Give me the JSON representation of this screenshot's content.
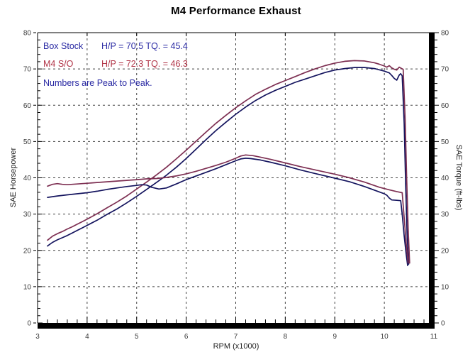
{
  "title": "M4 Performance Exhaust",
  "legend": {
    "rows": [
      {
        "name": "Box Stock",
        "values": "H/P = 70.5 TQ. = 45.4",
        "color": "#2929a3"
      },
      {
        "name": "M4 S/O",
        "values": "H/P = 72.3 TQ. = 46.3",
        "color": "#b03346"
      }
    ],
    "note": "Numbers are Peak to Peak.",
    "note_color": "#2929a3"
  },
  "axes": {
    "x": {
      "label": "RPM (x1000)",
      "min": 3,
      "max": 11,
      "major_step": 1,
      "minor_step": 0.2
    },
    "y_left": {
      "label": "SAE Horsepower",
      "min": 0,
      "max": 80,
      "major_step": 10,
      "minor_step": 2
    },
    "y_right": {
      "label": "SAE Torque (ft-lbs)",
      "min": 0,
      "max": 80,
      "major_step": 10,
      "minor_step": 2
    }
  },
  "colors": {
    "stock_curve": "#14145e",
    "m4_curve": "#7d2f52",
    "grid": "#404040",
    "frame": "#000000",
    "tick_label": "#3c3c3c"
  },
  "chart_data": {
    "type": "line",
    "title": "M4 Performance Exhaust",
    "xlabel": "RPM (x1000)",
    "ylabel_left": "SAE Horsepower",
    "ylabel_right": "SAE Torque (ft-lbs)",
    "xlim": [
      3,
      11
    ],
    "ylim": [
      0,
      80
    ],
    "grid": "dashed",
    "peaks": {
      "box_stock": {
        "hp": 70.5,
        "tq": 45.4
      },
      "m4_so": {
        "hp": 72.3,
        "tq": 46.3
      }
    },
    "series": [
      {
        "name": "Box Stock Horsepower",
        "color_key": "stock_curve",
        "points": [
          [
            3.2,
            21.2
          ],
          [
            3.3,
            22.2
          ],
          [
            3.4,
            22.9
          ],
          [
            3.5,
            23.5
          ],
          [
            3.6,
            24.1
          ],
          [
            3.7,
            24.8
          ],
          [
            3.8,
            25.5
          ],
          [
            3.9,
            26.2
          ],
          [
            4.0,
            26.9
          ],
          [
            4.2,
            28.3
          ],
          [
            4.4,
            29.9
          ],
          [
            4.6,
            31.4
          ],
          [
            4.8,
            33.1
          ],
          [
            5.0,
            34.9
          ],
          [
            5.2,
            36.8
          ],
          [
            5.4,
            38.7
          ],
          [
            5.6,
            40.7
          ],
          [
            5.8,
            42.9
          ],
          [
            6.0,
            45.3
          ],
          [
            6.2,
            47.9
          ],
          [
            6.4,
            50.5
          ],
          [
            6.6,
            53.0
          ],
          [
            6.8,
            55.3
          ],
          [
            7.0,
            57.5
          ],
          [
            7.2,
            59.5
          ],
          [
            7.4,
            61.3
          ],
          [
            7.6,
            62.8
          ],
          [
            7.8,
            64.1
          ],
          [
            8.0,
            65.2
          ],
          [
            8.2,
            66.3
          ],
          [
            8.4,
            67.2
          ],
          [
            8.6,
            68.1
          ],
          [
            8.8,
            69.0
          ],
          [
            9.0,
            69.7
          ],
          [
            9.2,
            70.1
          ],
          [
            9.4,
            70.4
          ],
          [
            9.6,
            70.4
          ],
          [
            9.8,
            70.1
          ],
          [
            10.0,
            69.4
          ],
          [
            10.1,
            68.9
          ],
          [
            10.15,
            68.2
          ],
          [
            10.2,
            67.4
          ],
          [
            10.25,
            66.9
          ],
          [
            10.3,
            68.3
          ],
          [
            10.33,
            68.7
          ],
          [
            10.36,
            68.1
          ],
          [
            10.4,
            55.0
          ],
          [
            10.43,
            38.0
          ],
          [
            10.46,
            24.0
          ],
          [
            10.49,
            16.2
          ]
        ]
      },
      {
        "name": "M4 S/O Horsepower",
        "color_key": "m4_curve",
        "points": [
          [
            3.2,
            22.8
          ],
          [
            3.3,
            23.9
          ],
          [
            3.4,
            24.6
          ],
          [
            3.5,
            25.2
          ],
          [
            3.6,
            25.9
          ],
          [
            3.7,
            26.5
          ],
          [
            3.8,
            27.2
          ],
          [
            3.9,
            27.9
          ],
          [
            4.0,
            28.6
          ],
          [
            4.2,
            30.1
          ],
          [
            4.4,
            31.7
          ],
          [
            4.6,
            33.3
          ],
          [
            4.8,
            35.0
          ],
          [
            5.0,
            36.9
          ],
          [
            5.2,
            38.8
          ],
          [
            5.4,
            40.8
          ],
          [
            5.6,
            42.9
          ],
          [
            5.8,
            45.2
          ],
          [
            6.0,
            47.6
          ],
          [
            6.2,
            50.1
          ],
          [
            6.4,
            52.6
          ],
          [
            6.6,
            55.0
          ],
          [
            6.8,
            57.2
          ],
          [
            7.0,
            59.3
          ],
          [
            7.2,
            61.2
          ],
          [
            7.4,
            63.0
          ],
          [
            7.6,
            64.4
          ],
          [
            7.8,
            65.7
          ],
          [
            8.0,
            66.8
          ],
          [
            8.2,
            67.9
          ],
          [
            8.4,
            69.0
          ],
          [
            8.6,
            70.0
          ],
          [
            8.8,
            70.9
          ],
          [
            9.0,
            71.6
          ],
          [
            9.2,
            72.1
          ],
          [
            9.4,
            72.3
          ],
          [
            9.6,
            72.2
          ],
          [
            9.8,
            71.7
          ],
          [
            9.9,
            71.3
          ],
          [
            10.0,
            70.8
          ],
          [
            10.05,
            70.5
          ],
          [
            10.1,
            70.9
          ],
          [
            10.15,
            70.3
          ],
          [
            10.2,
            69.9
          ],
          [
            10.25,
            69.7
          ],
          [
            10.3,
            70.5
          ],
          [
            10.35,
            70.1
          ],
          [
            10.38,
            69.9
          ],
          [
            10.42,
            56.0
          ],
          [
            10.45,
            40.0
          ],
          [
            10.48,
            26.0
          ],
          [
            10.51,
            16.5
          ]
        ]
      },
      {
        "name": "Box Stock Torque",
        "color_key": "stock_curve",
        "points": [
          [
            3.2,
            34.6
          ],
          [
            3.4,
            35.0
          ],
          [
            3.6,
            35.3
          ],
          [
            3.8,
            35.6
          ],
          [
            4.0,
            35.9
          ],
          [
            4.2,
            36.3
          ],
          [
            4.4,
            36.8
          ],
          [
            4.6,
            37.2
          ],
          [
            4.8,
            37.6
          ],
          [
            5.0,
            37.9
          ],
          [
            5.1,
            38.1
          ],
          [
            5.2,
            38.0
          ],
          [
            5.3,
            37.4
          ],
          [
            5.45,
            36.9
          ],
          [
            5.6,
            37.2
          ],
          [
            5.8,
            38.3
          ],
          [
            6.0,
            39.5
          ],
          [
            6.2,
            40.5
          ],
          [
            6.4,
            41.5
          ],
          [
            6.6,
            42.5
          ],
          [
            6.8,
            43.6
          ],
          [
            7.0,
            44.7
          ],
          [
            7.1,
            45.2
          ],
          [
            7.2,
            45.4
          ],
          [
            7.3,
            45.3
          ],
          [
            7.5,
            44.9
          ],
          [
            7.7,
            44.3
          ],
          [
            8.0,
            43.3
          ],
          [
            8.3,
            42.2
          ],
          [
            8.6,
            41.2
          ],
          [
            9.0,
            39.9
          ],
          [
            9.3,
            38.9
          ],
          [
            9.6,
            37.6
          ],
          [
            9.9,
            36.1
          ],
          [
            10.0,
            35.6
          ],
          [
            10.05,
            35.2
          ],
          [
            10.1,
            34.4
          ],
          [
            10.15,
            33.9
          ],
          [
            10.25,
            33.8
          ],
          [
            10.33,
            33.7
          ],
          [
            10.36,
            30.0
          ],
          [
            10.4,
            24.0
          ],
          [
            10.44,
            19.0
          ],
          [
            10.47,
            15.8
          ]
        ]
      },
      {
        "name": "M4 S/O Torque",
        "color_key": "m4_curve",
        "points": [
          [
            3.2,
            37.7
          ],
          [
            3.3,
            38.2
          ],
          [
            3.4,
            38.4
          ],
          [
            3.5,
            38.2
          ],
          [
            3.6,
            38.1
          ],
          [
            3.8,
            38.3
          ],
          [
            4.0,
            38.5
          ],
          [
            4.2,
            38.7
          ],
          [
            4.4,
            38.9
          ],
          [
            4.6,
            39.1
          ],
          [
            4.8,
            39.3
          ],
          [
            5.0,
            39.5
          ],
          [
            5.2,
            39.7
          ],
          [
            5.4,
            39.8
          ],
          [
            5.6,
            40.1
          ],
          [
            5.8,
            40.5
          ],
          [
            6.0,
            41.1
          ],
          [
            6.2,
            41.8
          ],
          [
            6.4,
            42.6
          ],
          [
            6.6,
            43.4
          ],
          [
            6.8,
            44.3
          ],
          [
            7.0,
            45.4
          ],
          [
            7.1,
            46.0
          ],
          [
            7.2,
            46.3
          ],
          [
            7.35,
            46.1
          ],
          [
            7.5,
            45.7
          ],
          [
            7.7,
            45.1
          ],
          [
            8.0,
            44.1
          ],
          [
            8.3,
            43.1
          ],
          [
            8.6,
            42.2
          ],
          [
            9.0,
            41.0
          ],
          [
            9.3,
            40.0
          ],
          [
            9.6,
            38.8
          ],
          [
            9.9,
            37.4
          ],
          [
            10.1,
            36.7
          ],
          [
            10.25,
            36.2
          ],
          [
            10.36,
            35.9
          ],
          [
            10.4,
            29.0
          ],
          [
            10.44,
            22.0
          ],
          [
            10.48,
            16.5
          ]
        ]
      }
    ]
  }
}
